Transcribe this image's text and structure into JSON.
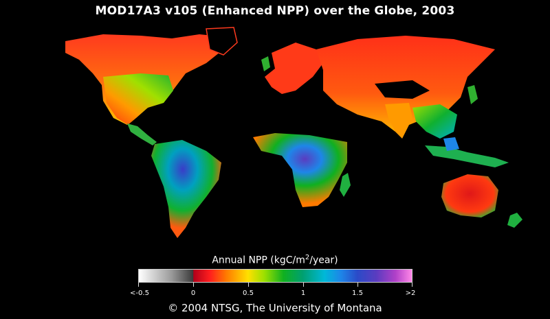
{
  "title": "MOD17A3 v105 (Enhanced NPP) over the Globe, 2003",
  "legend": {
    "label_main": "Annual NPP (kgC/m",
    "label_sup": "2",
    "label_tail": "/year)",
    "ticks": [
      "<-0.5",
      "0",
      "0.5",
      "1",
      "1.5",
      ">2"
    ],
    "colors": [
      "#ffffff",
      "#3a3a3a",
      "#ff1e1e",
      "#ffe000",
      "#10b020",
      "#00b8d8",
      "#2a4bc8",
      "#b040c8",
      "#ff88e8"
    ]
  },
  "credit": "© 2004 NTSG, The University of Montana",
  "map": {
    "background": "#000000",
    "ocean_color": "#000000"
  }
}
